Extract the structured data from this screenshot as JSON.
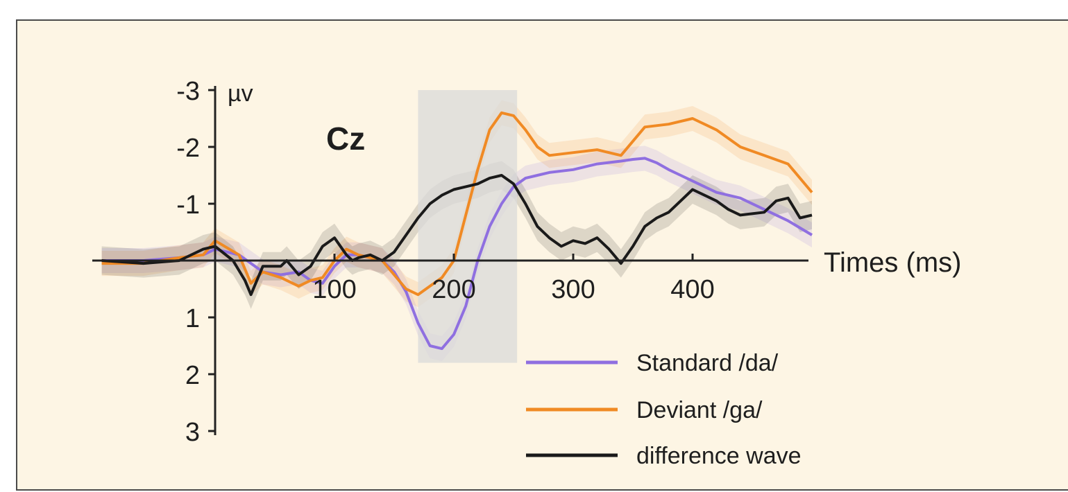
{
  "chart_data": {
    "type": "line",
    "title": "Cz",
    "xlabel": "Times (ms)",
    "ylabel": "µv",
    "xlim": [
      -100,
      500
    ],
    "ylim": [
      -3,
      3
    ],
    "y_inverted": true,
    "x_ticks": [
      100,
      200,
      300,
      400
    ],
    "y_ticks": [
      -3,
      -2,
      -1,
      1,
      2,
      3
    ],
    "shaded_window": [
      170,
      253
    ],
    "legend_position": "bottom-right",
    "series": [
      {
        "name": "Standard /da/",
        "color": "#8f6fe0",
        "x": [
          -95,
          -60,
          -30,
          -10,
          0,
          20,
          40,
          55,
          70,
          80,
          90,
          100,
          110,
          120,
          130,
          140,
          150,
          160,
          170,
          180,
          190,
          200,
          210,
          220,
          230,
          240,
          250,
          260,
          270,
          280,
          300,
          320,
          340,
          350,
          360,
          370,
          380,
          390,
          400,
          420,
          440,
          460,
          480,
          500
        ],
        "values": [
          0.0,
          0.0,
          -0.05,
          -0.1,
          -0.2,
          -0.1,
          0.2,
          0.25,
          0.2,
          0.35,
          0.4,
          0.1,
          -0.1,
          -0.1,
          -0.05,
          0.0,
          0.2,
          0.55,
          1.1,
          1.5,
          1.55,
          1.3,
          0.8,
          0.0,
          -0.6,
          -1.0,
          -1.3,
          -1.45,
          -1.5,
          -1.55,
          -1.6,
          -1.7,
          -1.75,
          -1.78,
          -1.8,
          -1.72,
          -1.6,
          -1.5,
          -1.4,
          -1.2,
          -1.1,
          -0.9,
          -0.7,
          -0.45
        ]
      },
      {
        "name": "Deviant /ga/",
        "color": "#f08a24",
        "x": [
          -95,
          -60,
          -30,
          -10,
          0,
          20,
          30,
          40,
          55,
          70,
          80,
          90,
          100,
          110,
          120,
          130,
          140,
          150,
          160,
          170,
          180,
          190,
          200,
          210,
          220,
          230,
          240,
          250,
          260,
          270,
          280,
          300,
          320,
          340,
          350,
          360,
          380,
          400,
          420,
          440,
          460,
          480,
          500
        ],
        "values": [
          0.05,
          0.05,
          -0.05,
          -0.1,
          -0.35,
          -0.1,
          0.4,
          0.2,
          0.3,
          0.45,
          0.35,
          0.3,
          0.0,
          -0.2,
          -0.1,
          -0.05,
          0.0,
          0.25,
          0.5,
          0.6,
          0.45,
          0.3,
          0.0,
          -0.8,
          -1.6,
          -2.3,
          -2.6,
          -2.55,
          -2.3,
          -2.0,
          -1.85,
          -1.9,
          -1.95,
          -1.85,
          -2.1,
          -2.35,
          -2.4,
          -2.5,
          -2.3,
          -2.0,
          -1.85,
          -1.7,
          -1.2
        ]
      },
      {
        "name": "difference wave",
        "color": "#1a1a1a",
        "x": [
          -95,
          -60,
          -30,
          -10,
          0,
          15,
          25,
          30,
          40,
          55,
          60,
          70,
          80,
          90,
          100,
          110,
          115,
          120,
          130,
          140,
          150,
          160,
          170,
          180,
          190,
          200,
          210,
          220,
          230,
          240,
          250,
          260,
          270,
          280,
          290,
          300,
          310,
          320,
          330,
          340,
          350,
          360,
          370,
          380,
          390,
          400,
          410,
          420,
          430,
          440,
          460,
          470,
          480,
          490,
          500
        ],
        "values": [
          0.0,
          0.05,
          0.0,
          -0.2,
          -0.25,
          0.0,
          0.35,
          0.6,
          0.1,
          0.1,
          0.0,
          0.25,
          0.1,
          -0.25,
          -0.4,
          -0.1,
          0.0,
          -0.05,
          -0.1,
          0.0,
          -0.15,
          -0.45,
          -0.75,
          -1.0,
          -1.15,
          -1.25,
          -1.3,
          -1.35,
          -1.45,
          -1.5,
          -1.35,
          -1.0,
          -0.6,
          -0.4,
          -0.25,
          -0.35,
          -0.3,
          -0.4,
          -0.2,
          0.05,
          -0.25,
          -0.6,
          -0.75,
          -0.85,
          -1.05,
          -1.25,
          -1.15,
          -1.05,
          -0.9,
          -0.8,
          -0.85,
          -1.05,
          -1.1,
          -0.75,
          -0.8
        ]
      }
    ]
  }
}
